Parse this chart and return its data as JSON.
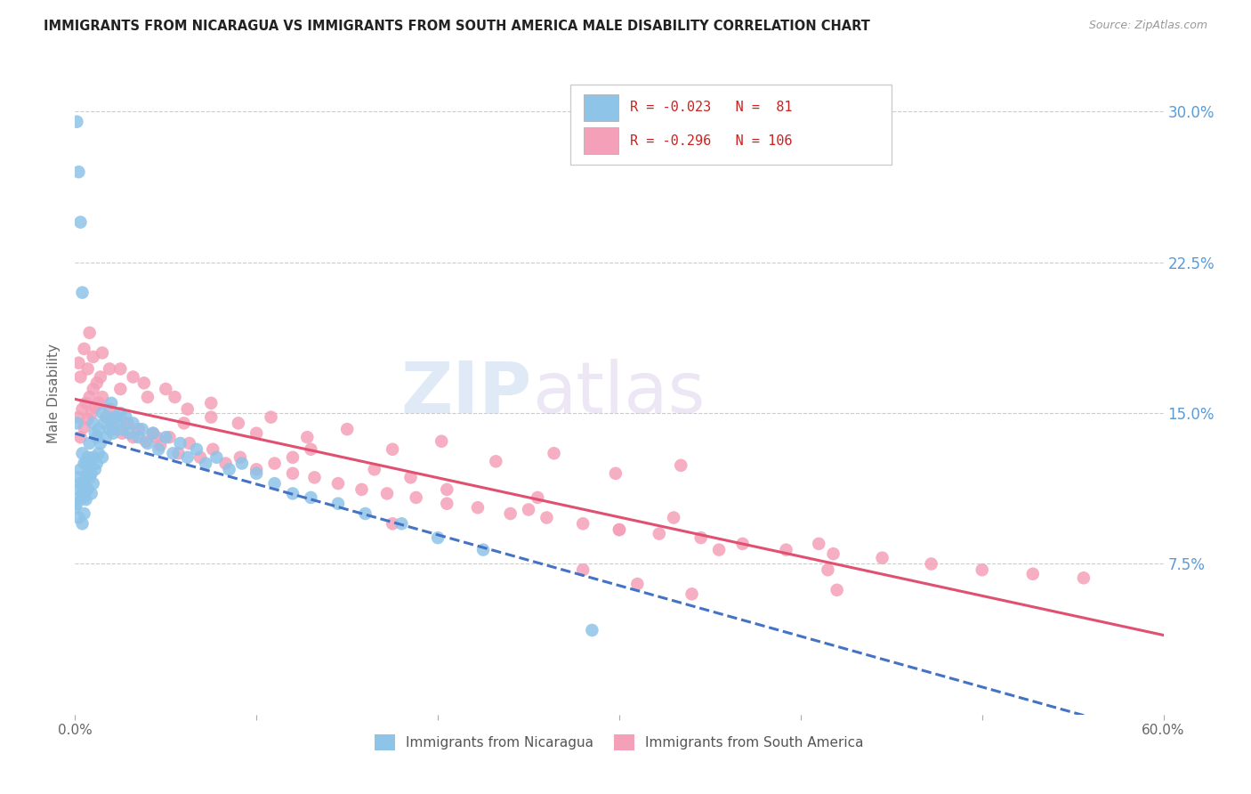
{
  "title": "IMMIGRANTS FROM NICARAGUA VS IMMIGRANTS FROM SOUTH AMERICA MALE DISABILITY CORRELATION CHART",
  "source": "Source: ZipAtlas.com",
  "ylabel": "Male Disability",
  "yticks": [
    "7.5%",
    "15.0%",
    "22.5%",
    "30.0%"
  ],
  "ytick_vals": [
    0.075,
    0.15,
    0.225,
    0.3
  ],
  "xlim": [
    0.0,
    0.6
  ],
  "ylim": [
    0.0,
    0.32
  ],
  "color_nicaragua": "#8ec4e8",
  "color_south_america": "#f4a0b8",
  "color_line_nicaragua": "#4472c4",
  "color_line_south_america": "#e05070",
  "label_nicaragua": "Immigrants from Nicaragua",
  "label_south_america": "Immigrants from South America",
  "nicaragua_x": [
    0.0,
    0.001,
    0.001,
    0.002,
    0.002,
    0.002,
    0.003,
    0.003,
    0.003,
    0.004,
    0.004,
    0.004,
    0.005,
    0.005,
    0.005,
    0.005,
    0.006,
    0.006,
    0.006,
    0.006,
    0.007,
    0.007,
    0.007,
    0.008,
    0.008,
    0.008,
    0.009,
    0.009,
    0.01,
    0.01,
    0.01,
    0.011,
    0.011,
    0.012,
    0.012,
    0.013,
    0.013,
    0.014,
    0.015,
    0.015,
    0.016,
    0.017,
    0.018,
    0.019,
    0.02,
    0.021,
    0.022,
    0.023,
    0.025,
    0.026,
    0.028,
    0.03,
    0.032,
    0.035,
    0.037,
    0.04,
    0.043,
    0.046,
    0.05,
    0.054,
    0.058,
    0.062,
    0.067,
    0.072,
    0.078,
    0.085,
    0.092,
    0.1,
    0.11,
    0.12,
    0.13,
    0.145,
    0.16,
    0.18,
    0.2,
    0.225,
    0.001,
    0.002,
    0.003,
    0.004,
    0.285
  ],
  "nicaragua_y": [
    0.103,
    0.145,
    0.105,
    0.118,
    0.098,
    0.112,
    0.115,
    0.108,
    0.122,
    0.095,
    0.11,
    0.13,
    0.1,
    0.115,
    0.125,
    0.108,
    0.113,
    0.107,
    0.118,
    0.125,
    0.12,
    0.128,
    0.112,
    0.135,
    0.118,
    0.126,
    0.11,
    0.12,
    0.145,
    0.128,
    0.115,
    0.14,
    0.122,
    0.138,
    0.125,
    0.142,
    0.13,
    0.135,
    0.15,
    0.128,
    0.145,
    0.138,
    0.148,
    0.142,
    0.155,
    0.14,
    0.148,
    0.145,
    0.15,
    0.142,
    0.148,
    0.14,
    0.145,
    0.138,
    0.142,
    0.135,
    0.14,
    0.132,
    0.138,
    0.13,
    0.135,
    0.128,
    0.132,
    0.125,
    0.128,
    0.122,
    0.125,
    0.12,
    0.115,
    0.11,
    0.108,
    0.105,
    0.1,
    0.095,
    0.088,
    0.082,
    0.295,
    0.27,
    0.245,
    0.21,
    0.042
  ],
  "south_america_x": [
    0.002,
    0.003,
    0.004,
    0.005,
    0.006,
    0.007,
    0.008,
    0.009,
    0.01,
    0.011,
    0.012,
    0.013,
    0.015,
    0.017,
    0.019,
    0.021,
    0.023,
    0.026,
    0.029,
    0.032,
    0.035,
    0.039,
    0.043,
    0.047,
    0.052,
    0.057,
    0.063,
    0.069,
    0.076,
    0.083,
    0.091,
    0.1,
    0.11,
    0.12,
    0.132,
    0.145,
    0.158,
    0.172,
    0.188,
    0.205,
    0.222,
    0.24,
    0.26,
    0.28,
    0.3,
    0.322,
    0.345,
    0.368,
    0.392,
    0.418,
    0.445,
    0.472,
    0.5,
    0.528,
    0.556,
    0.002,
    0.003,
    0.005,
    0.007,
    0.01,
    0.014,
    0.019,
    0.025,
    0.032,
    0.04,
    0.05,
    0.062,
    0.075,
    0.09,
    0.108,
    0.128,
    0.15,
    0.175,
    0.202,
    0.232,
    0.264,
    0.298,
    0.334,
    0.008,
    0.015,
    0.025,
    0.038,
    0.055,
    0.075,
    0.1,
    0.13,
    0.165,
    0.205,
    0.25,
    0.3,
    0.355,
    0.415,
    0.06,
    0.12,
    0.185,
    0.255,
    0.33,
    0.41,
    0.045,
    0.28,
    0.42,
    0.31,
    0.175,
    0.34
  ],
  "south_america_y": [
    0.148,
    0.138,
    0.152,
    0.143,
    0.155,
    0.147,
    0.158,
    0.15,
    0.162,
    0.153,
    0.165,
    0.155,
    0.158,
    0.148,
    0.152,
    0.142,
    0.148,
    0.14,
    0.145,
    0.138,
    0.142,
    0.136,
    0.14,
    0.134,
    0.138,
    0.13,
    0.135,
    0.128,
    0.132,
    0.125,
    0.128,
    0.122,
    0.125,
    0.12,
    0.118,
    0.115,
    0.112,
    0.11,
    0.108,
    0.105,
    0.103,
    0.1,
    0.098,
    0.095,
    0.092,
    0.09,
    0.088,
    0.085,
    0.082,
    0.08,
    0.078,
    0.075,
    0.072,
    0.07,
    0.068,
    0.175,
    0.168,
    0.182,
    0.172,
    0.178,
    0.168,
    0.172,
    0.162,
    0.168,
    0.158,
    0.162,
    0.152,
    0.155,
    0.145,
    0.148,
    0.138,
    0.142,
    0.132,
    0.136,
    0.126,
    0.13,
    0.12,
    0.124,
    0.19,
    0.18,
    0.172,
    0.165,
    0.158,
    0.148,
    0.14,
    0.132,
    0.122,
    0.112,
    0.102,
    0.092,
    0.082,
    0.072,
    0.145,
    0.128,
    0.118,
    0.108,
    0.098,
    0.085,
    0.138,
    0.072,
    0.062,
    0.065,
    0.095,
    0.06
  ]
}
